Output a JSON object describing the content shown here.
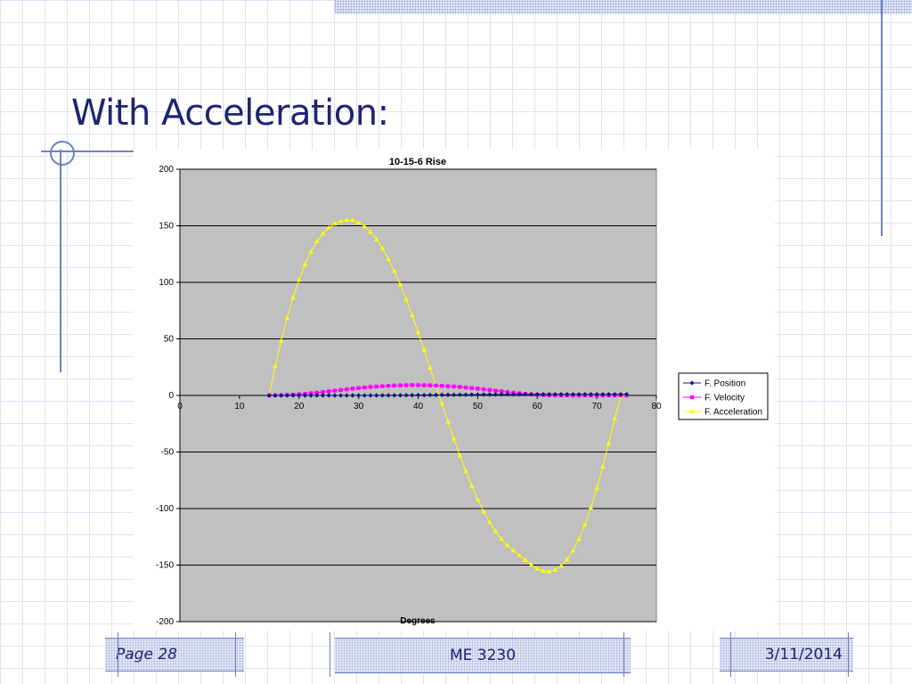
{
  "slide": {
    "title": "With Acceleration:",
    "footer": {
      "page": "Page 28",
      "course": "ME 3230",
      "date": "3/11/2014"
    }
  },
  "colors": {
    "accent": "#1e2470",
    "plot_bg": "#c0c0c0",
    "position": "#0a1a7a",
    "velocity": "#ff00ff",
    "acceleration": "#ffff00"
  },
  "chart_data": {
    "type": "line",
    "title": "10-15-6 Rise",
    "xlabel": "Degrees",
    "ylabel": "",
    "xlim": [
      0,
      80
    ],
    "ylim": [
      -200,
      200
    ],
    "x_ticks": [
      "0",
      "10",
      "20",
      "30",
      "40",
      "50",
      "60",
      "70",
      "80"
    ],
    "y_ticks": [
      "200",
      "150",
      "100",
      "50",
      "0",
      "-50",
      "-100",
      "-150",
      "-200"
    ],
    "grid": "horizontal",
    "legend_position": "right",
    "x": [
      15,
      16,
      17,
      18,
      19,
      20,
      21,
      22,
      23,
      24,
      25,
      26,
      27,
      28,
      29,
      30,
      31,
      32,
      33,
      34,
      35,
      36,
      37,
      38,
      39,
      40,
      41,
      42,
      43,
      44,
      45,
      46,
      47,
      48,
      49,
      50,
      51,
      52,
      53,
      54,
      55,
      56,
      57,
      58,
      59,
      60,
      61,
      62,
      63,
      64,
      65,
      66,
      67,
      68,
      69,
      70,
      71,
      72,
      73,
      74,
      75
    ],
    "series": [
      {
        "name": "F. Position",
        "marker": "diamond",
        "values": [
          0,
          0,
          0,
          0,
          0,
          0,
          0,
          0,
          0,
          0,
          0,
          0,
          0,
          0,
          0,
          0,
          0,
          0,
          0,
          0.1,
          0.1,
          0.1,
          0.1,
          0.2,
          0.2,
          0.3,
          0.3,
          0.4,
          0.4,
          0.5,
          0.5,
          0.5,
          0.6,
          0.6,
          0.7,
          0.7,
          0.8,
          0.8,
          0.8,
          0.9,
          0.9,
          0.9,
          0.9,
          0.9,
          0.9,
          1,
          1,
          1,
          1,
          1,
          1,
          1,
          1,
          1,
          1,
          1,
          1,
          1,
          1,
          1,
          1
        ]
      },
      {
        "name": "F. Velocity",
        "marker": "square",
        "values": [
          0,
          0.1,
          0.2,
          0.4,
          0.6,
          1,
          1.4,
          1.9,
          2.4,
          3,
          3.6,
          4.2,
          4.8,
          5.4,
          6,
          6.5,
          7,
          7.5,
          7.9,
          8.2,
          8.5,
          8.7,
          8.9,
          9,
          9.1,
          9.1,
          9,
          8.9,
          8.7,
          8.5,
          8.2,
          7.9,
          7.5,
          7,
          6.5,
          6,
          5.4,
          4.8,
          4.2,
          3.6,
          3,
          2.4,
          1.9,
          1.4,
          1,
          0.6,
          0.4,
          0.2,
          0.1,
          0,
          0,
          0,
          0,
          0,
          0,
          0,
          0,
          0,
          0,
          0,
          0
        ]
      },
      {
        "name": "F. Acceleration",
        "marker": "triangle",
        "values": [
          0,
          25.8,
          48.2,
          68.3,
          86.3,
          102.1,
          115.7,
          127,
          136.1,
          143.1,
          148.3,
          151.8,
          154.1,
          155.2,
          154.9,
          152.9,
          149.4,
          144.5,
          138,
          130,
          120.6,
          109.9,
          97.9,
          84.8,
          70.7,
          55.8,
          40.3,
          24.5,
          8.6,
          -7.3,
          -23,
          -38.3,
          -53.1,
          -67.1,
          -80.1,
          -92,
          -102.7,
          -112.1,
          -120.2,
          -127,
          -132.6,
          -137.2,
          -141.3,
          -145.4,
          -149.8,
          -153.2,
          -155.2,
          -155.6,
          -154.2,
          -150.8,
          -145.2,
          -137.3,
          -127,
          -114.3,
          -99.3,
          -82.1,
          -63,
          -42.3,
          -20.6,
          -0.8,
          0
        ]
      }
    ]
  }
}
